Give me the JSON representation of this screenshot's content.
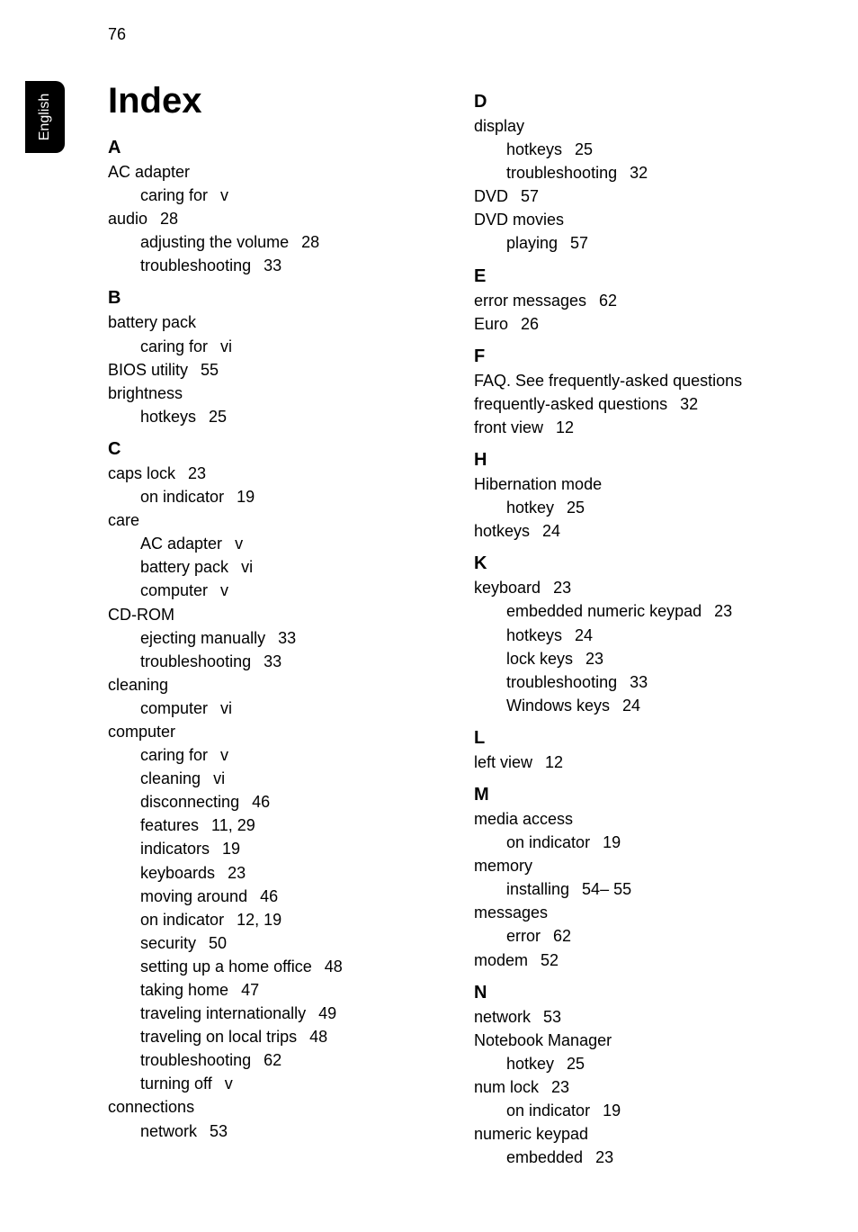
{
  "page_number": "76",
  "side_tab": "English",
  "title": "Index",
  "left_column": [
    {
      "type": "letter",
      "text": "A"
    },
    {
      "type": "entry",
      "text": "AC adapter"
    },
    {
      "type": "sub",
      "text": "caring for",
      "pages": "v"
    },
    {
      "type": "entry",
      "text": "audio",
      "pages": "28"
    },
    {
      "type": "sub",
      "text": "adjusting the volume",
      "pages": "28"
    },
    {
      "type": "sub",
      "text": "troubleshooting",
      "pages": "33"
    },
    {
      "type": "letter",
      "text": "B"
    },
    {
      "type": "entry",
      "text": "battery pack"
    },
    {
      "type": "sub",
      "text": "caring for",
      "pages": "vi"
    },
    {
      "type": "entry",
      "text": "BIOS utility",
      "pages": "55"
    },
    {
      "type": "entry",
      "text": "brightness"
    },
    {
      "type": "sub",
      "text": "hotkeys",
      "pages": "25"
    },
    {
      "type": "letter",
      "text": "C"
    },
    {
      "type": "entry",
      "text": "caps lock",
      "pages": "23"
    },
    {
      "type": "sub",
      "text": "on indicator",
      "pages": "19"
    },
    {
      "type": "entry",
      "text": "care"
    },
    {
      "type": "sub",
      "text": "AC adapter",
      "pages": "v"
    },
    {
      "type": "sub",
      "text": "battery pack",
      "pages": "vi"
    },
    {
      "type": "sub",
      "text": "computer",
      "pages": "v"
    },
    {
      "type": "entry",
      "text": "CD-ROM"
    },
    {
      "type": "sub",
      "text": "ejecting manually",
      "pages": "33"
    },
    {
      "type": "sub",
      "text": "troubleshooting",
      "pages": "33"
    },
    {
      "type": "entry",
      "text": "cleaning"
    },
    {
      "type": "sub",
      "text": "computer",
      "pages": "vi"
    },
    {
      "type": "entry",
      "text": "computer"
    },
    {
      "type": "sub",
      "text": "caring for",
      "pages": "v"
    },
    {
      "type": "sub",
      "text": "cleaning",
      "pages": "vi"
    },
    {
      "type": "sub",
      "text": "disconnecting",
      "pages": "46"
    },
    {
      "type": "sub",
      "text": "features",
      "pages": "11,    29"
    },
    {
      "type": "sub",
      "text": "indicators",
      "pages": "19"
    },
    {
      "type": "sub",
      "text": "keyboards",
      "pages": "23"
    },
    {
      "type": "sub",
      "text": "moving around",
      "pages": "46"
    },
    {
      "type": "sub",
      "text": "on indicator",
      "pages": "12,    19"
    },
    {
      "type": "sub",
      "text": "security",
      "pages": "50"
    },
    {
      "type": "sub",
      "text": "setting up a home office",
      "pages": "48"
    },
    {
      "type": "sub",
      "text": "taking home",
      "pages": "47"
    },
    {
      "type": "sub",
      "text": "traveling internationally",
      "pages": "49"
    },
    {
      "type": "sub",
      "text": "traveling on local trips",
      "pages": "48"
    },
    {
      "type": "sub",
      "text": "troubleshooting",
      "pages": "62"
    },
    {
      "type": "sub",
      "text": "turning off",
      "pages": "v"
    },
    {
      "type": "entry",
      "text": "connections"
    },
    {
      "type": "sub",
      "text": "network",
      "pages": "53"
    }
  ],
  "right_column": [
    {
      "type": "letter",
      "text": "D"
    },
    {
      "type": "entry",
      "text": "display"
    },
    {
      "type": "sub",
      "text": "hotkeys",
      "pages": "25"
    },
    {
      "type": "sub",
      "text": "troubleshooting",
      "pages": "32"
    },
    {
      "type": "entry",
      "text": "DVD",
      "pages": "57"
    },
    {
      "type": "entry",
      "text": "DVD movies"
    },
    {
      "type": "sub",
      "text": "playing",
      "pages": "57"
    },
    {
      "type": "letter",
      "text": "E"
    },
    {
      "type": "entry",
      "text": "error messages",
      "pages": "62"
    },
    {
      "type": "entry",
      "text": "Euro",
      "pages": "26"
    },
    {
      "type": "letter",
      "text": "F"
    },
    {
      "type": "entry",
      "text": "FAQ. See frequently-asked questions"
    },
    {
      "type": "entry",
      "text": "frequently-asked questions",
      "pages": "32"
    },
    {
      "type": "entry",
      "text": "front view",
      "pages": "12"
    },
    {
      "type": "letter",
      "text": "H"
    },
    {
      "type": "entry",
      "text": "Hibernation mode"
    },
    {
      "type": "sub",
      "text": "hotkey",
      "pages": "25"
    },
    {
      "type": "entry",
      "text": "hotkeys",
      "pages": "24"
    },
    {
      "type": "letter",
      "text": "K"
    },
    {
      "type": "entry",
      "text": "keyboard",
      "pages": "23"
    },
    {
      "type": "sub",
      "text": "embedded numeric keypad",
      "pages": "23"
    },
    {
      "type": "sub",
      "text": "hotkeys",
      "pages": "24"
    },
    {
      "type": "sub",
      "text": "lock keys",
      "pages": "23"
    },
    {
      "type": "sub",
      "text": "troubleshooting",
      "pages": "33"
    },
    {
      "type": "sub",
      "text": "Windows keys",
      "pages": "24"
    },
    {
      "type": "letter",
      "text": "L"
    },
    {
      "type": "entry",
      "text": "left view",
      "pages": "12"
    },
    {
      "type": "letter",
      "text": "M"
    },
    {
      "type": "entry",
      "text": "media access"
    },
    {
      "type": "sub",
      "text": "on indicator",
      "pages": "19"
    },
    {
      "type": "entry",
      "text": "memory"
    },
    {
      "type": "sub",
      "text": "installing",
      "pages": "54–    55"
    },
    {
      "type": "entry",
      "text": "messages"
    },
    {
      "type": "sub",
      "text": "error",
      "pages": "62"
    },
    {
      "type": "entry",
      "text": "modem",
      "pages": "52"
    },
    {
      "type": "letter",
      "text": "N"
    },
    {
      "type": "entry",
      "text": "network",
      "pages": "53"
    },
    {
      "type": "entry",
      "text": "Notebook Manager"
    },
    {
      "type": "sub",
      "text": "hotkey",
      "pages": "25"
    },
    {
      "type": "entry",
      "text": "num lock",
      "pages": "23"
    },
    {
      "type": "sub",
      "text": "on indicator",
      "pages": "19"
    },
    {
      "type": "entry",
      "text": "numeric keypad"
    },
    {
      "type": "sub",
      "text": "embedded",
      "pages": "23"
    }
  ]
}
